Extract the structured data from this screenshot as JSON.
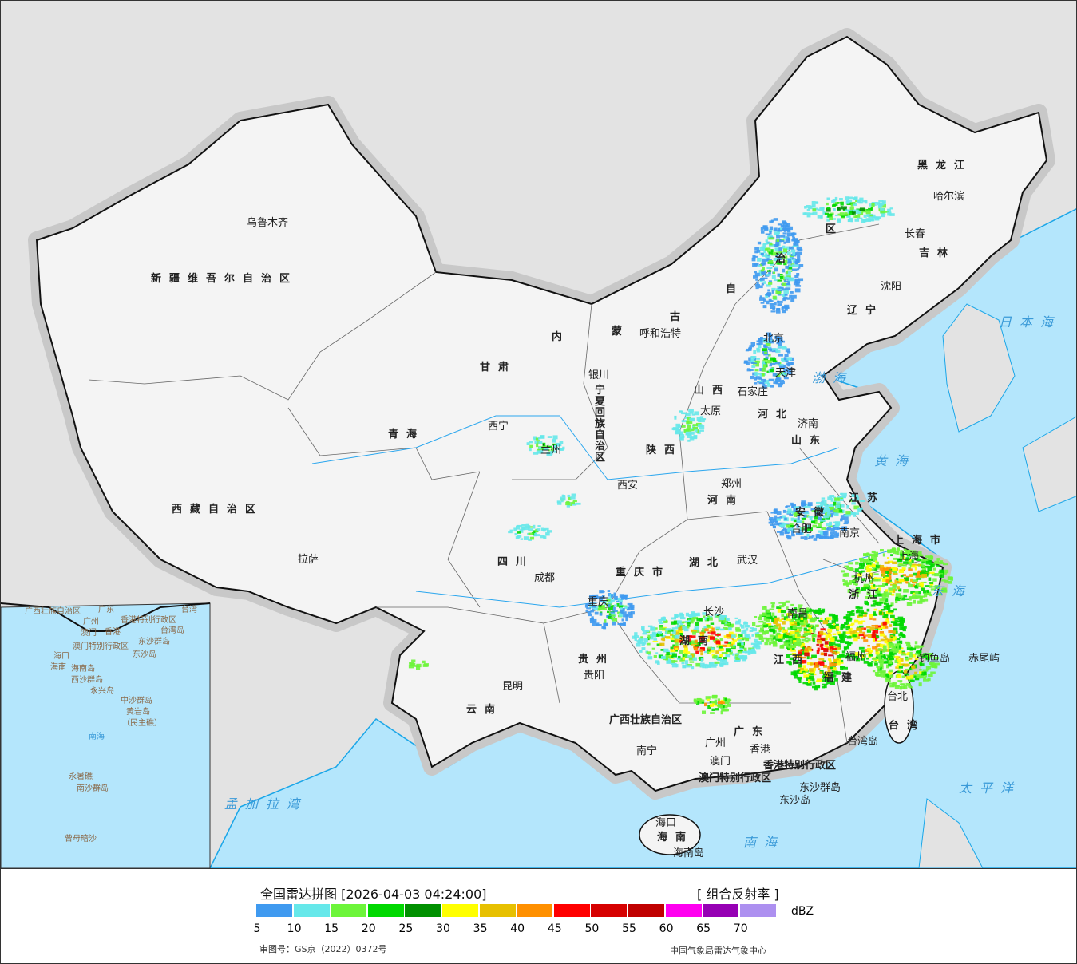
{
  "legend": {
    "title": "全国雷达拼图 [2026-04-03 04:24:00]",
    "product": "[ 组合反射率 ]",
    "unit": "dBZ",
    "ticks": [
      "5",
      "10",
      "15",
      "20",
      "25",
      "30",
      "35",
      "40",
      "45",
      "50",
      "55",
      "60",
      "65",
      "70"
    ],
    "colors": [
      "#3f9af0",
      "#66e8ea",
      "#6df53a",
      "#00d800",
      "#009000",
      "#ffff00",
      "#e7c000",
      "#ff9000",
      "#ff0000",
      "#d60000",
      "#c00000",
      "#ff00f0",
      "#9600b4",
      "#ad90f0"
    ],
    "approval": "审图号：GS京（2022）0372号",
    "org": "中国气象局雷达气象中心"
  },
  "map": {
    "colors": {
      "sea": "#b4e6fc",
      "land_outside": "#e3e3e3",
      "china": "#f4f4f4",
      "border": "#111111",
      "coast": "#1aa6e8"
    },
    "cities": [
      "乌鲁木齐",
      "拉萨",
      "西宁",
      "兰州",
      "银川",
      "呼和浩特",
      "北京",
      "天津",
      "石家庄",
      "太原",
      "济南",
      "郑州",
      "西安",
      "成都",
      "重庆",
      "贵阳",
      "昆明",
      "南宁",
      "广州",
      "香港",
      "澳门",
      "长沙",
      "武汉",
      "南昌",
      "合肥",
      "南京",
      "上海",
      "杭州",
      "福州",
      "台北",
      "海口",
      "沈阳",
      "长春",
      "哈尔滨",
      "钓鱼岛",
      "赤尾屿",
      "台湾岛",
      "海南岛",
      "东沙群岛",
      "东沙岛"
    ],
    "provinces": [
      "新疆维吾尔自治区",
      "西藏自治区",
      "青海",
      "甘肃",
      "内蒙古自治区",
      "宁夏回族自治区",
      "陕西",
      "山西",
      "河北",
      "山东",
      "河南",
      "四川",
      "重庆市",
      "贵州",
      "云南",
      "广西壮族自治区",
      "广东",
      "湖南",
      "湖北",
      "江西",
      "安徽",
      "江苏",
      "上海市",
      "浙江",
      "福建",
      "台湾",
      "海南",
      "辽宁",
      "吉林",
      "黑龙江",
      "香港特别行政区",
      "澳门特别行政区"
    ],
    "seas": [
      "日本海",
      "渤海",
      "黄海",
      "东海",
      "太平洋",
      "南海",
      "孟加拉湾"
    ],
    "inset": [
      "广西壮族自治区",
      "广东",
      "广州",
      "澳门",
      "香港",
      "香港特别行政区",
      "澳门特别行政区",
      "台湾",
      "台湾岛",
      "东沙群岛",
      "东沙岛",
      "海口",
      "海南",
      "海南岛",
      "西沙群岛",
      "永兴岛",
      "中沙群岛",
      "黄岩岛",
      "（民主礁）",
      "南海",
      "永暑礁",
      "南沙群岛",
      "曾母暗沙"
    ]
  }
}
